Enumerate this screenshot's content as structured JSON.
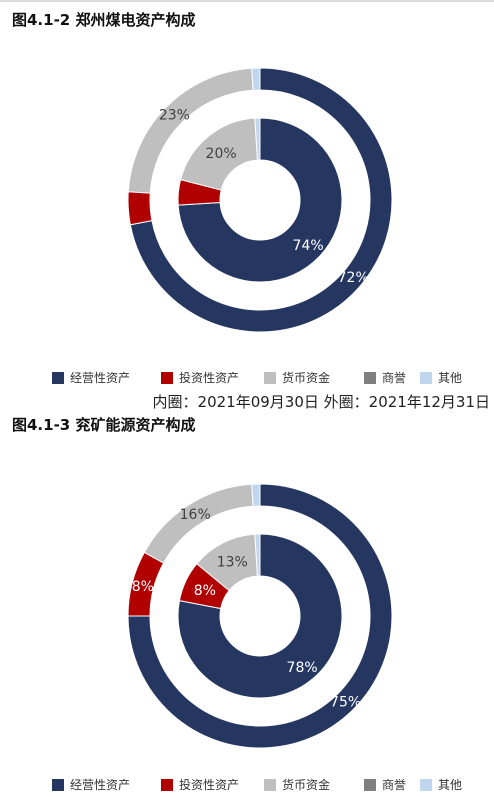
{
  "chart_data": [
    {
      "type": "pie",
      "title": "图4.1-2 郑州煤电资产构成",
      "categories": [
        "经营性资产",
        "投资性资产",
        "货币资金",
        "商誉",
        "其他"
      ],
      "colors": [
        "#253761",
        "#b00000",
        "#bfbfbf",
        "#7f7f7f",
        "#c0d6ee"
      ],
      "series": [
        {
          "ring": "outer",
          "values": [
            72,
            4,
            23,
            0,
            1
          ],
          "labels": [
            "72%",
            "",
            "23%",
            "",
            ""
          ]
        },
        {
          "ring": "inner",
          "values": [
            74,
            5,
            20,
            0,
            1
          ],
          "labels": [
            "74%",
            "",
            "20%",
            "",
            ""
          ]
        }
      ],
      "legend": "bottom",
      "note": "内圈：2021年09月30日 外圈：2021年12月31日"
    },
    {
      "type": "pie",
      "title": "图4.1-3 兖矿能源资产构成",
      "categories": [
        "经营性资产",
        "投资性资产",
        "货币资金",
        "商誉",
        "其他"
      ],
      "colors": [
        "#253761",
        "#b00000",
        "#bfbfbf",
        "#7f7f7f",
        "#c0d6ee"
      ],
      "series": [
        {
          "ring": "outer",
          "values": [
            75,
            8,
            16,
            0,
            1
          ],
          "labels": [
            "75%",
            "8%",
            "16%",
            "",
            ""
          ]
        },
        {
          "ring": "inner",
          "values": [
            78,
            8,
            13,
            0,
            1
          ],
          "labels": [
            "78%",
            "8%",
            "13%",
            "",
            ""
          ]
        }
      ],
      "legend": "bottom"
    }
  ]
}
